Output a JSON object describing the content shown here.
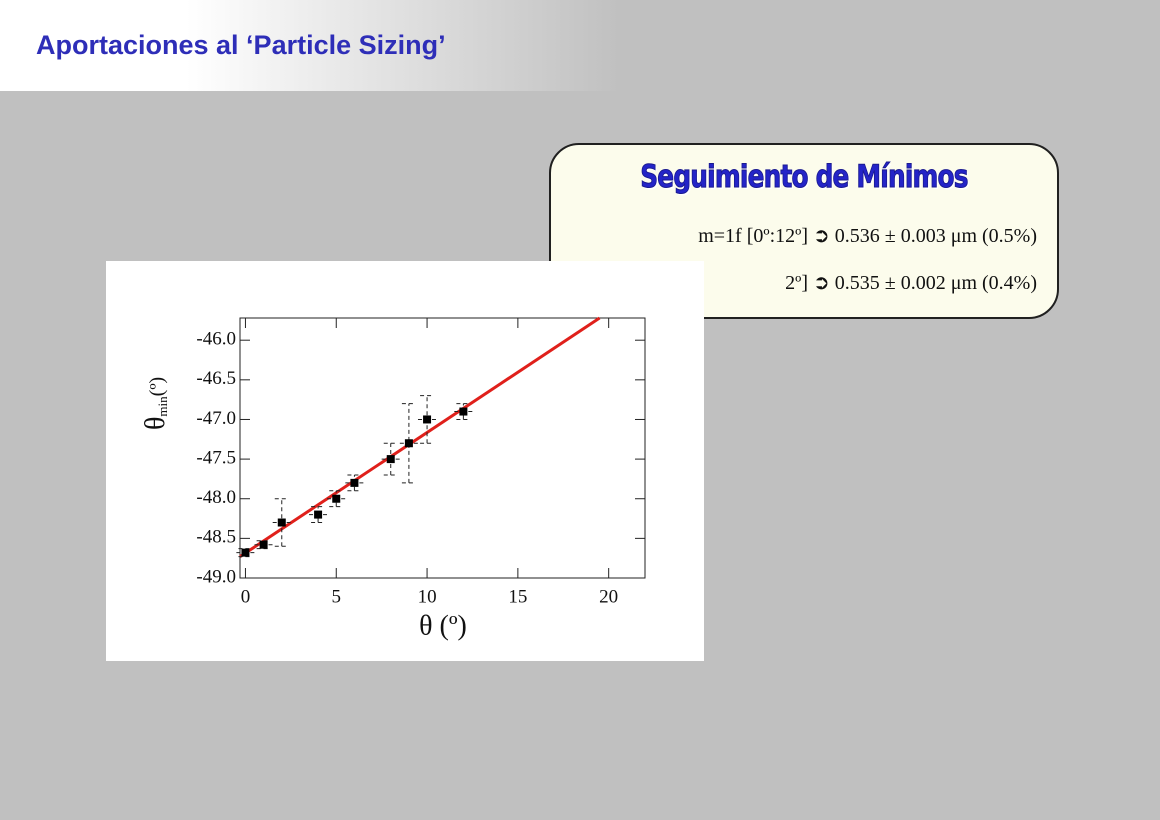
{
  "header": {
    "title": "Aportaciones al ‘Particle Sizing’"
  },
  "box": {
    "title": "Seguimiento de Mínimos",
    "lines": [
      "m=1f  [0º:12º] ➲ 0.536 ± 0.003 μm (0.5%)",
      "2º] ➲ 0.535 ± 0.002 μm (0.4%)"
    ]
  },
  "chart_data": {
    "type": "scatter",
    "x": [
      0,
      1,
      2,
      4,
      5,
      6,
      8,
      9,
      10,
      12
    ],
    "values": [
      -48.68,
      -48.58,
      -48.3,
      -48.2,
      -48.0,
      -47.8,
      -47.5,
      -47.3,
      -47.0,
      -46.9
    ],
    "y_errors": [
      0.05,
      0.05,
      0.3,
      0.1,
      0.1,
      0.1,
      0.2,
      0.5,
      0.3,
      0.1
    ],
    "x_errors": [
      0.5,
      0.5,
      0.5,
      0.5,
      0.5,
      0.5,
      0.5,
      0.5,
      0.5,
      0.5
    ],
    "color": "#000000",
    "fit": {
      "x": [
        -0.3,
        19.5
      ],
      "values": [
        -48.73,
        -45.72
      ],
      "color": "#e0201b"
    },
    "xlim": [
      -0.3,
      22
    ],
    "ylim": [
      -49.0,
      -45.72
    ],
    "xticks": [
      0,
      5,
      10,
      15,
      20
    ],
    "yticks": [
      {
        "value": -49,
        "label": "-49.0"
      },
      {
        "value": -48.5,
        "label": "-48.5"
      },
      {
        "value": -48,
        "label": "-48.0"
      },
      {
        "value": -47.5,
        "label": "-47.5"
      },
      {
        "value": -47,
        "label": "-47.0"
      },
      {
        "value": -46.5,
        "label": "-46.5"
      },
      {
        "value": -46,
        "label": "-46.0"
      }
    ],
    "x_label": "θ (º)",
    "y_label": {
      "symbol": "θ",
      "subscript": "min",
      "unit": "(º)"
    },
    "grid": false
  }
}
